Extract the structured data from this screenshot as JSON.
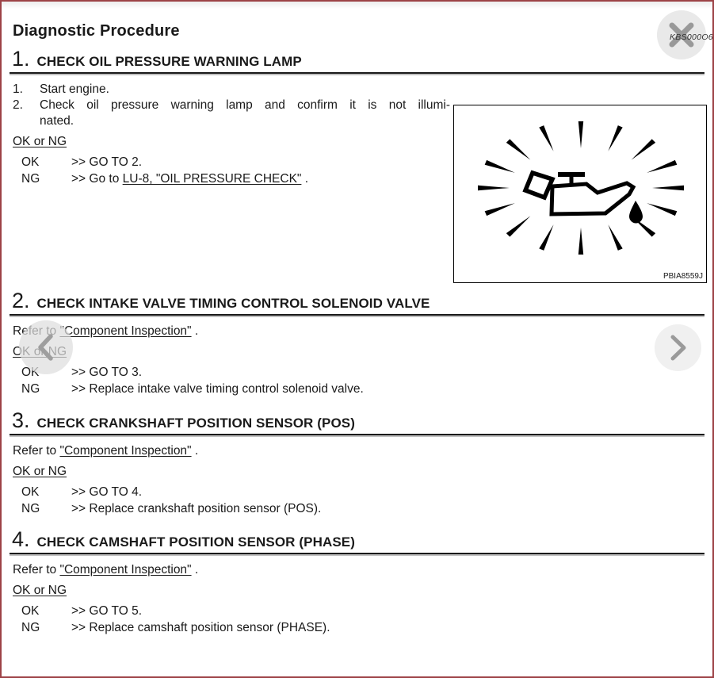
{
  "app": {
    "watermark": "KBS000O6",
    "colors": {
      "frame_border": "#9d4246",
      "text": "#1a1a1a",
      "button_gray": "#e9e9e9"
    }
  },
  "doc": {
    "title": "Diagnostic Procedure",
    "sections": [
      {
        "number": "1.",
        "heading": "CHECK OIL PRESSURE WARNING LAMP",
        "list": [
          {
            "marker": "1.",
            "line1": "Start engine.",
            "line2": ""
          },
          {
            "marker": "2.",
            "line1": "Check oil pressure warning lamp and confirm it is not illumi-",
            "line2": "nated."
          }
        ],
        "condition_label": "OK or NG",
        "results": [
          {
            "label": "OK",
            "arrow": ">> ",
            "pre": "GO TO 2.",
            "link": "",
            "post": ""
          },
          {
            "label": "NG",
            "arrow": ">> ",
            "pre": "Go to ",
            "link": "LU-8, \"OIL PRESSURE CHECK\"",
            "post": " ."
          }
        ],
        "figure": {
          "icon": "oil-pressure-warning-lamp-icon",
          "code": "PBIA8559J"
        }
      },
      {
        "number": "2.",
        "heading": "CHECK INTAKE VALVE TIMING CONTROL SOLENOID VALVE",
        "refer": {
          "pre": "Refer to ",
          "link": "\"Component Inspection\"",
          "post": " ."
        },
        "condition_label": "OK or NG",
        "results": [
          {
            "label": "OK",
            "arrow": ">> ",
            "pre": "GO TO 3.",
            "link": "",
            "post": ""
          },
          {
            "label": "NG",
            "arrow": ">> ",
            "pre": "Replace intake valve timing control solenoid valve.",
            "link": "",
            "post": ""
          }
        ]
      },
      {
        "number": "3.",
        "heading": "CHECK CRANKSHAFT POSITION SENSOR (POS)",
        "refer": {
          "pre": "Refer to ",
          "link": "\"Component Inspection\"",
          "post": " ."
        },
        "condition_label": "OK or NG",
        "results": [
          {
            "label": "OK",
            "arrow": ">> ",
            "pre": "GO TO 4.",
            "link": "",
            "post": ""
          },
          {
            "label": "NG",
            "arrow": ">> ",
            "pre": "Replace crankshaft position sensor (POS).",
            "link": "",
            "post": ""
          }
        ]
      },
      {
        "number": "4.",
        "heading": "CHECK CAMSHAFT POSITION SENSOR (PHASE)",
        "refer": {
          "pre": "Refer to ",
          "link": "\"Component Inspection\"",
          "post": " ."
        },
        "condition_label": "OK or NG",
        "results": [
          {
            "label": "OK",
            "arrow": ">> ",
            "pre": "GO TO 5.",
            "link": "",
            "post": ""
          },
          {
            "label": "NG",
            "arrow": ">> ",
            "pre": "Replace camshaft position sensor (PHASE).",
            "link": "",
            "post": ""
          }
        ]
      }
    ]
  }
}
